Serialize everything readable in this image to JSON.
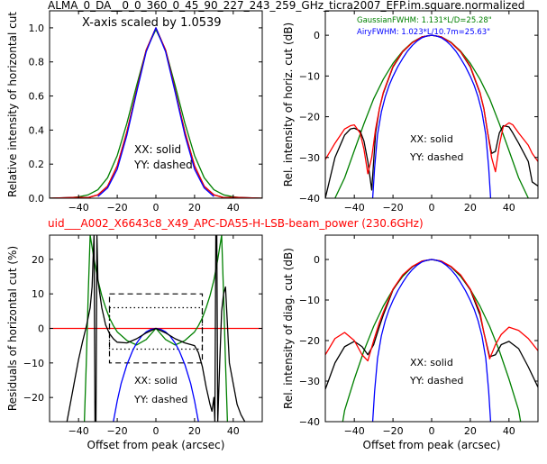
{
  "figure": {
    "title": "ALMA_0_DA__0_0_360_0_45_90_227_243_259_GHz_ticra2007_EFP.im.square.normalized",
    "subtitle": "uid___A002_X6643c8_X49_APC-DA55-H-LSB-beam_power (230.6GHz)",
    "subtitle_color": "#ff0000"
  },
  "chart_data": [
    {
      "id": "top-left",
      "type": "line",
      "ylabel": "Relative intensity of horizontal cut",
      "xlabel": "",
      "xlim": [
        -55,
        55
      ],
      "ylim": [
        0,
        1.1
      ],
      "xticks": [
        -40,
        -20,
        0,
        20,
        40
      ],
      "yticks": [
        0.0,
        0.2,
        0.4,
        0.6,
        0.8,
        1.0
      ],
      "ytick_labels": [
        "0.0",
        "0.2",
        "0.4",
        "0.6",
        "0.8",
        "1.0"
      ],
      "annotations": [
        "X-axis scaled by 1.0539",
        "XX: solid",
        "YY: dashed"
      ],
      "series": [
        {
          "color": "#008000",
          "x": [
            -55,
            -45,
            -40,
            -35,
            -30,
            -25,
            -20,
            -15,
            -10,
            -5,
            0,
            5,
            10,
            15,
            20,
            25,
            30,
            35,
            40,
            45,
            55
          ],
          "y": [
            0,
            0.002,
            0.008,
            0.02,
            0.05,
            0.12,
            0.25,
            0.44,
            0.66,
            0.87,
            0.99,
            0.87,
            0.66,
            0.44,
            0.25,
            0.12,
            0.05,
            0.02,
            0.008,
            0.002,
            0
          ]
        },
        {
          "color": "#000000",
          "x": [
            -55,
            -45,
            -40,
            -35,
            -30,
            -25,
            -20,
            -15,
            -10,
            -5,
            0,
            5,
            10,
            15,
            20,
            25,
            30,
            35,
            40,
            45,
            55
          ],
          "y": [
            0,
            0.004,
            0.006,
            0.004,
            0.02,
            0.07,
            0.19,
            0.39,
            0.63,
            0.87,
            1.0,
            0.87,
            0.63,
            0.39,
            0.19,
            0.07,
            0.02,
            0.004,
            0.006,
            0.004,
            0
          ]
        },
        {
          "color": "#ff0000",
          "x": [
            -55,
            -45,
            -40,
            -35,
            -30,
            -25,
            -20,
            -15,
            -10,
            -5,
            0,
            5,
            10,
            15,
            20,
            25,
            30,
            35,
            40,
            45,
            55
          ],
          "y": [
            0,
            0.003,
            0.005,
            0.003,
            0.02,
            0.07,
            0.19,
            0.39,
            0.63,
            0.87,
            1.0,
            0.87,
            0.63,
            0.39,
            0.19,
            0.07,
            0.02,
            0.003,
            0.005,
            0.003,
            0
          ]
        },
        {
          "color": "#0000ff",
          "x": [
            -30,
            -25,
            -20,
            -15,
            -10,
            -5,
            0,
            5,
            10,
            15,
            20,
            25,
            30
          ],
          "y": [
            0.01,
            0.06,
            0.17,
            0.37,
            0.62,
            0.86,
            1.0,
            0.86,
            0.62,
            0.37,
            0.17,
            0.06,
            0.01
          ]
        }
      ]
    },
    {
      "id": "top-right",
      "type": "line",
      "ylabel": "Rel. intensity of horiz. cut (dB)",
      "xlabel": "",
      "xlim": [
        -55,
        55
      ],
      "ylim": [
        -40,
        6
      ],
      "xticks": [
        -40,
        -20,
        0,
        20,
        40
      ],
      "yticks": [
        -40,
        -30,
        -20,
        -10,
        0
      ],
      "ytick_labels": [
        "−40",
        "−30",
        "−20",
        "−10",
        "0"
      ],
      "annotations": [
        "XX: solid",
        "YY: dashed"
      ],
      "legend": [
        {
          "text": "GaussianFWHM: 1.131*L/D=25.28\"",
          "color": "#008000"
        },
        {
          "text": "AiryFWHM: 1.023*L/10.7m=25.63\"",
          "color": "#0000ff"
        }
      ],
      "series": [
        {
          "color": "#008000",
          "x": [
            -50,
            -45,
            -40,
            -35,
            -30,
            -25,
            -20,
            -15,
            -10,
            -5,
            0,
            5,
            10,
            15,
            20,
            25,
            30,
            35,
            40,
            45,
            50
          ],
          "y": [
            -40,
            -35,
            -28.3,
            -21.7,
            -15.6,
            -10.8,
            -6.9,
            -3.9,
            -1.7,
            -0.4,
            0,
            -0.4,
            -1.7,
            -3.9,
            -6.9,
            -10.8,
            -15.6,
            -21.7,
            -28.3,
            -35,
            -40
          ]
        },
        {
          "color": "#000000",
          "x": [
            -55,
            -50,
            -45,
            -42,
            -40,
            -37,
            -35,
            -33,
            -31,
            -29,
            -27,
            -25,
            -20,
            -15,
            -10,
            -5,
            0,
            5,
            10,
            15,
            20,
            25,
            27,
            29,
            31,
            33,
            35,
            37,
            40,
            42,
            45,
            50,
            52,
            55
          ],
          "y": [
            -40,
            -30,
            -24.5,
            -23,
            -22.8,
            -23.5,
            -26,
            -31,
            -38,
            -24,
            -18,
            -14.2,
            -7.8,
            -4.1,
            -1.8,
            -0.4,
            0,
            -0.4,
            -1.8,
            -4.1,
            -7.8,
            -14.2,
            -18,
            -24,
            -29,
            -28.5,
            -24,
            -22.2,
            -22.5,
            -24,
            -26.5,
            -31,
            -36,
            -37
          ]
        },
        {
          "color": "#ff0000",
          "x": [
            -55,
            -50,
            -45,
            -42,
            -40,
            -37,
            -35,
            -33,
            -31,
            -29,
            -27,
            -25,
            -20,
            -15,
            -10,
            -5,
            0,
            5,
            10,
            15,
            20,
            25,
            27,
            29,
            31,
            33,
            35,
            37,
            40,
            42,
            45,
            50,
            52,
            55
          ],
          "y": [
            -30.5,
            -26.5,
            -23,
            -22.2,
            -22,
            -24,
            -28,
            -34,
            -30,
            -23,
            -18,
            -14,
            -7.6,
            -4,
            -1.8,
            -0.4,
            0,
            -0.4,
            -1.8,
            -4,
            -7.6,
            -14,
            -18,
            -24,
            -30,
            -33.5,
            -27,
            -22.5,
            -21.5,
            -22,
            -24,
            -27,
            -29,
            -31
          ]
        },
        {
          "color": "#0000ff",
          "x": [
            -30.5,
            -29.5,
            -28,
            -26,
            -24,
            -22,
            -20,
            -17.5,
            -15,
            -12.5,
            -10,
            -7.5,
            -5,
            -2.5,
            0,
            2.5,
            5,
            7.5,
            10,
            12.5,
            15,
            17.5,
            20,
            22,
            24,
            26,
            28,
            29.5,
            30.5
          ],
          "y": [
            -40,
            -32.5,
            -24.4,
            -18.8,
            -15.1,
            -12.3,
            -10.1,
            -7.7,
            -5.7,
            -3.9,
            -2.5,
            -1.4,
            -0.6,
            -0.2,
            0,
            -0.2,
            -0.6,
            -1.4,
            -2.5,
            -3.9,
            -5.7,
            -7.7,
            -10.1,
            -12.3,
            -15.1,
            -18.8,
            -24.4,
            -32.5,
            -40
          ]
        }
      ]
    },
    {
      "id": "bottom-left",
      "type": "line",
      "ylabel": "Residuals of horizontal cut (%)",
      "xlabel": "Offset from peak (arcsec)",
      "xlim": [
        -55,
        55
      ],
      "ylim": [
        -27,
        27
      ],
      "xticks": [
        -40,
        -20,
        0,
        20,
        40
      ],
      "yticks": [
        -20,
        -10,
        0,
        10,
        20
      ],
      "ytick_labels": [
        "−20",
        "−10",
        "0",
        "10",
        "20"
      ],
      "annotations": [
        "XX: solid",
        "YY: dashed"
      ],
      "zero_line_color": "#ff0000",
      "boxes": [
        {
          "style": "dashed",
          "x": [
            -24,
            24
          ],
          "y": [
            -10,
            10
          ]
        },
        {
          "style": "dotted",
          "x": [
            -24,
            24
          ],
          "y": [
            -6,
            6
          ]
        }
      ],
      "series": [
        {
          "color": "#008000",
          "x": [
            -37,
            -36,
            -35,
            -34,
            -32,
            -30,
            -28,
            -26,
            -24,
            -22,
            -20,
            -15,
            -10,
            -5,
            0,
            5,
            10,
            15,
            20,
            22,
            24,
            26,
            28,
            30,
            32,
            34,
            35,
            36,
            37
          ],
          "y": [
            -27,
            -10,
            10,
            27,
            20,
            14,
            9.5,
            6,
            3,
            0.8,
            -1,
            -3.5,
            -4.8,
            -3.2,
            0,
            -3.2,
            -4.8,
            -3.5,
            -1,
            0.8,
            3,
            6,
            9.5,
            14,
            20,
            27,
            10,
            -10,
            -27
          ]
        },
        {
          "color": "#0000ff",
          "x": [
            -22,
            -20,
            -18,
            -15,
            -12,
            -10,
            -7.5,
            -5,
            -2.5,
            0,
            2.5,
            5,
            7.5,
            10,
            12,
            15,
            18,
            20,
            22
          ],
          "y": [
            -27,
            -21,
            -16,
            -10.5,
            -6.4,
            -4.3,
            -2.3,
            -1,
            -0.25,
            0,
            -0.25,
            -1,
            -2.3,
            -4.3,
            -6.4,
            -10.5,
            -16,
            -21,
            -27
          ]
        },
        {
          "color": "#000000",
          "x": [
            -46,
            -44,
            -42,
            -40,
            -38,
            -36,
            -34,
            -33,
            -32.5,
            -32,
            -31.5,
            -31,
            -30.5,
            -30,
            -28,
            -26,
            -24,
            -22,
            -20,
            -15,
            -10,
            -5,
            0,
            5,
            10,
            15,
            20,
            22,
            24,
            26,
            28,
            29,
            30,
            30.5,
            31,
            31.5,
            32,
            33,
            34,
            35,
            36,
            38,
            40,
            42,
            44,
            46
          ],
          "y": [
            -27,
            -21,
            -15,
            -9,
            -4,
            0.5,
            6,
            12,
            20,
            27,
            -27,
            -27,
            27,
            14,
            6,
            1,
            -1.5,
            -3,
            -4,
            -4.2,
            -3,
            -1.3,
            0,
            -1.3,
            -3,
            -4.2,
            -5,
            -7,
            -11,
            -17,
            -22,
            -24,
            -20,
            -27,
            27,
            27,
            -27,
            -10,
            5,
            10,
            12,
            -10,
            -16,
            -22,
            -25,
            -27
          ]
        }
      ]
    },
    {
      "id": "bottom-right",
      "type": "line",
      "ylabel": "Rel. intensity of diag. cut (dB)",
      "xlabel": "Offset from peak (arcsec)",
      "xlim": [
        -55,
        55
      ],
      "ylim": [
        -40,
        6
      ],
      "xticks": [
        -40,
        -20,
        0,
        20,
        40
      ],
      "yticks": [
        -40,
        -30,
        -20,
        -10,
        0
      ],
      "ytick_labels": [
        "−40",
        "−30",
        "−20",
        "−10",
        "0"
      ],
      "annotations": [
        "XX: solid",
        "YY: dashed"
      ],
      "series": [
        {
          "color": "#008000",
          "x": [
            -46,
            -45,
            -40,
            -35,
            -30,
            -25,
            -20,
            -15,
            -10,
            -5,
            0,
            5,
            10,
            15,
            20,
            25,
            30,
            35,
            40,
            45,
            46
          ],
          "y": [
            -40,
            -37.2,
            -29.5,
            -22.5,
            -16.5,
            -11.5,
            -7.4,
            -4.2,
            -1.8,
            -0.5,
            0,
            -0.5,
            -1.8,
            -4.2,
            -7.4,
            -11.5,
            -16.5,
            -22.5,
            -29.5,
            -37.2,
            -40
          ]
        },
        {
          "color": "#000000",
          "x": [
            -55,
            -50,
            -45,
            -40,
            -36,
            -33,
            -30,
            -27,
            -25,
            -20,
            -15,
            -10,
            -5,
            0,
            5,
            10,
            15,
            20,
            25,
            27,
            30,
            33,
            36,
            40,
            45,
            50,
            55
          ],
          "y": [
            -32,
            -25.5,
            -21.5,
            -20.2,
            -21.5,
            -23.5,
            -21,
            -16.5,
            -13.7,
            -7.5,
            -3.9,
            -1.8,
            -0.4,
            0,
            -0.4,
            -1.8,
            -3.9,
            -7.5,
            -13.7,
            -18,
            -24,
            -23.5,
            -21,
            -20.2,
            -22,
            -26.5,
            -31.5
          ]
        },
        {
          "color": "#ff0000",
          "x": [
            -55,
            -50,
            -45,
            -40,
            -36,
            -33,
            -30,
            -27,
            -25,
            -20,
            -15,
            -10,
            -5,
            0,
            5,
            10,
            15,
            20,
            25,
            27,
            30,
            33,
            36,
            40,
            45,
            50,
            55
          ],
          "y": [
            -23.5,
            -19.5,
            -18,
            -20,
            -23.5,
            -25,
            -20,
            -15.5,
            -13,
            -7.3,
            -3.8,
            -1.7,
            -0.4,
            0,
            -0.4,
            -1.7,
            -3.8,
            -7.3,
            -13,
            -18,
            -24.5,
            -21,
            -18.5,
            -16.7,
            -17.5,
            -19.5,
            -22.5
          ]
        },
        {
          "color": "#0000ff",
          "x": [
            -30.5,
            -29.5,
            -28,
            -26,
            -24,
            -22,
            -20,
            -17.5,
            -15,
            -12.5,
            -10,
            -7.5,
            -5,
            -2.5,
            0,
            2.5,
            5,
            7.5,
            10,
            12.5,
            15,
            17.5,
            20,
            22,
            24,
            26,
            28,
            29.5,
            30.5
          ],
          "y": [
            -40,
            -32.5,
            -24.4,
            -18.8,
            -15.1,
            -12.3,
            -10.1,
            -7.7,
            -5.7,
            -3.9,
            -2.5,
            -1.4,
            -0.6,
            -0.2,
            0,
            -0.2,
            -0.6,
            -1.4,
            -2.5,
            -3.9,
            -5.7,
            -7.7,
            -10.1,
            -12.3,
            -15.1,
            -18.8,
            -24.4,
            -32.5,
            -40
          ]
        }
      ]
    }
  ]
}
